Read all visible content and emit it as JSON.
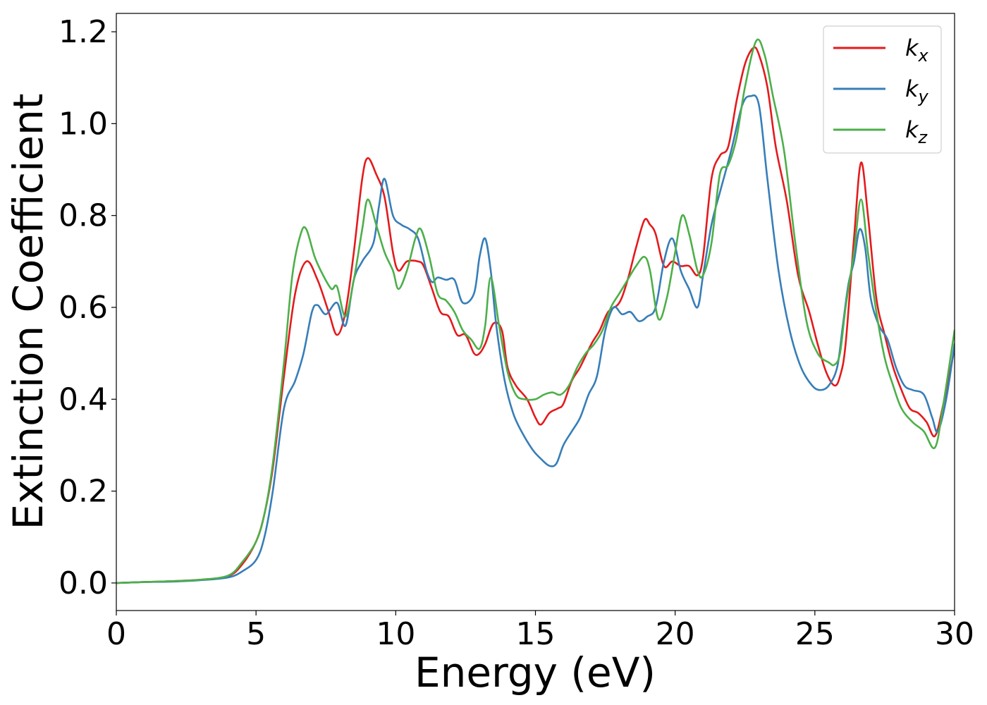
{
  "chart_data": {
    "type": "line",
    "title": "",
    "xlabel": "Energy (eV)",
    "ylabel": "Extinction Coefficient",
    "xlim": [
      0,
      30
    ],
    "ylim": [
      -0.06,
      1.24
    ],
    "xticks": [
      0,
      5,
      10,
      15,
      20,
      25,
      30
    ],
    "xtick_labels": [
      "0",
      "5",
      "10",
      "15",
      "20",
      "25",
      "30"
    ],
    "yticks": [
      0.0,
      0.2,
      0.4,
      0.6,
      0.8,
      1.0,
      1.2
    ],
    "ytick_labels": [
      "0.0",
      "0.2",
      "0.4",
      "0.6",
      "0.8",
      "1.0",
      "1.2"
    ],
    "grid": false,
    "legend_position": "upper right",
    "series": [
      {
        "name": "k_x",
        "label_base": "k",
        "label_sub": "x",
        "color": "#e41a1c",
        "x": [
          0,
          1,
          2,
          3,
          4,
          4.5,
          5,
          5.3,
          5.6,
          6.0,
          6.4,
          6.8,
          7.2,
          7.6,
          7.9,
          8.2,
          8.5,
          8.8,
          9.0,
          9.3,
          9.6,
          9.9,
          10.1,
          10.4,
          10.8,
          11.0,
          11.3,
          11.6,
          11.9,
          12.2,
          12.5,
          12.8,
          13.0,
          13.2,
          13.5,
          13.8,
          14.0,
          14.3,
          14.7,
          15.0,
          15.2,
          15.5,
          15.8,
          16.0,
          16.3,
          16.6,
          17.0,
          17.3,
          17.6,
          18.0,
          18.3,
          18.6,
          18.9,
          19.1,
          19.3,
          19.6,
          19.9,
          20.2,
          20.5,
          20.8,
          21.0,
          21.3,
          21.6,
          21.9,
          22.2,
          22.5,
          22.8,
          23.0,
          23.3,
          23.6,
          24.0,
          24.4,
          24.8,
          25.1,
          25.4,
          25.7,
          25.9,
          26.1,
          26.4,
          26.65,
          26.9,
          27.2,
          27.5,
          27.8,
          28.1,
          28.4,
          28.7,
          29.0,
          29.3,
          29.6,
          30.0
        ],
        "y": [
          0.0,
          0.002,
          0.004,
          0.007,
          0.015,
          0.04,
          0.09,
          0.15,
          0.25,
          0.45,
          0.63,
          0.7,
          0.66,
          0.59,
          0.54,
          0.59,
          0.72,
          0.88,
          0.925,
          0.89,
          0.84,
          0.72,
          0.68,
          0.7,
          0.7,
          0.69,
          0.64,
          0.59,
          0.58,
          0.54,
          0.54,
          0.5,
          0.5,
          0.52,
          0.565,
          0.55,
          0.47,
          0.43,
          0.4,
          0.36,
          0.345,
          0.37,
          0.38,
          0.39,
          0.44,
          0.47,
          0.52,
          0.55,
          0.59,
          0.61,
          0.66,
          0.73,
          0.79,
          0.78,
          0.76,
          0.69,
          0.7,
          0.69,
          0.69,
          0.67,
          0.71,
          0.88,
          0.93,
          0.95,
          1.05,
          1.13,
          1.165,
          1.15,
          1.08,
          0.95,
          0.83,
          0.67,
          0.59,
          0.52,
          0.46,
          0.43,
          0.45,
          0.52,
          0.75,
          0.915,
          0.8,
          0.62,
          0.54,
          0.47,
          0.42,
          0.38,
          0.37,
          0.35,
          0.32,
          0.39,
          0.51
        ]
      },
      {
        "name": "k_y",
        "label_base": "k",
        "label_sub": "y",
        "color": "#377eb8",
        "x": [
          0,
          1,
          2,
          3,
          4,
          4.5,
          5,
          5.3,
          5.6,
          6.0,
          6.4,
          6.7,
          7.0,
          7.2,
          7.5,
          7.9,
          8.2,
          8.5,
          8.8,
          9.2,
          9.4,
          9.6,
          9.9,
          10.2,
          10.5,
          10.8,
          11.1,
          11.3,
          11.5,
          11.8,
          12.1,
          12.4,
          12.8,
          13.0,
          13.2,
          13.4,
          13.6,
          13.9,
          14.2,
          14.5,
          14.9,
          15.2,
          15.5,
          15.75,
          16.0,
          16.3,
          16.6,
          16.9,
          17.2,
          17.5,
          17.8,
          18.1,
          18.4,
          18.7,
          19.0,
          19.3,
          19.6,
          19.9,
          20.2,
          20.5,
          20.8,
          21.0,
          21.3,
          21.6,
          22.0,
          22.4,
          22.7,
          23.0,
          23.3,
          23.7,
          24.1,
          24.5,
          24.9,
          25.2,
          25.5,
          25.8,
          26.0,
          26.2,
          26.4,
          26.6,
          26.8,
          27.0,
          27.3,
          27.6,
          27.9,
          28.2,
          28.5,
          28.9,
          29.2,
          29.4,
          29.7,
          30.0
        ],
        "y": [
          0.0,
          0.002,
          0.003,
          0.006,
          0.012,
          0.025,
          0.05,
          0.1,
          0.2,
          0.38,
          0.44,
          0.5,
          0.59,
          0.605,
          0.585,
          0.61,
          0.56,
          0.66,
          0.7,
          0.74,
          0.82,
          0.88,
          0.8,
          0.78,
          0.77,
          0.75,
          0.68,
          0.655,
          0.665,
          0.66,
          0.66,
          0.61,
          0.63,
          0.71,
          0.75,
          0.68,
          0.56,
          0.44,
          0.37,
          0.33,
          0.29,
          0.27,
          0.255,
          0.26,
          0.3,
          0.33,
          0.36,
          0.41,
          0.45,
          0.55,
          0.6,
          0.585,
          0.59,
          0.57,
          0.58,
          0.6,
          0.7,
          0.75,
          0.68,
          0.64,
          0.6,
          0.67,
          0.78,
          0.85,
          0.94,
          1.04,
          1.06,
          1.04,
          0.88,
          0.68,
          0.55,
          0.47,
          0.43,
          0.42,
          0.43,
          0.47,
          0.56,
          0.65,
          0.7,
          0.77,
          0.73,
          0.62,
          0.56,
          0.53,
          0.47,
          0.43,
          0.42,
          0.41,
          0.36,
          0.33,
          0.4,
          0.52
        ]
      },
      {
        "name": "k_z",
        "label_base": "k",
        "label_sub": "z",
        "color": "#4daf4a",
        "x": [
          0,
          1,
          2,
          3,
          4,
          4.5,
          5,
          5.3,
          5.6,
          6.0,
          6.3,
          6.6,
          6.8,
          7.1,
          7.4,
          7.7,
          7.9,
          8.2,
          8.5,
          8.8,
          9.0,
          9.3,
          9.6,
          9.9,
          10.1,
          10.4,
          10.7,
          10.9,
          11.2,
          11.5,
          11.8,
          12.1,
          12.4,
          12.7,
          13.0,
          13.2,
          13.4,
          13.7,
          14.0,
          14.3,
          14.6,
          15.0,
          15.3,
          15.6,
          15.9,
          16.2,
          16.5,
          16.8,
          17.1,
          17.4,
          17.7,
          18.0,
          18.3,
          18.6,
          18.9,
          19.1,
          19.4,
          19.7,
          20.0,
          20.25,
          20.5,
          20.8,
          21.0,
          21.3,
          21.6,
          21.9,
          22.2,
          22.5,
          22.9,
          23.2,
          23.5,
          23.9,
          24.3,
          24.7,
          25.1,
          25.5,
          25.7,
          25.9,
          26.1,
          26.4,
          26.65,
          26.9,
          27.2,
          27.5,
          27.8,
          28.1,
          28.5,
          28.9,
          29.3,
          29.6,
          30.0
        ],
        "y": [
          0.0,
          0.002,
          0.004,
          0.007,
          0.016,
          0.045,
          0.09,
          0.15,
          0.26,
          0.48,
          0.67,
          0.76,
          0.77,
          0.71,
          0.67,
          0.64,
          0.645,
          0.58,
          0.66,
          0.77,
          0.835,
          0.78,
          0.72,
          0.68,
          0.64,
          0.68,
          0.75,
          0.77,
          0.71,
          0.63,
          0.615,
          0.59,
          0.55,
          0.53,
          0.51,
          0.56,
          0.665,
          0.56,
          0.46,
          0.41,
          0.4,
          0.4,
          0.41,
          0.415,
          0.41,
          0.43,
          0.47,
          0.5,
          0.52,
          0.55,
          0.6,
          0.63,
          0.66,
          0.69,
          0.71,
          0.68,
          0.575,
          0.62,
          0.72,
          0.8,
          0.76,
          0.68,
          0.67,
          0.74,
          0.89,
          0.91,
          0.97,
          1.08,
          1.18,
          1.15,
          1.06,
          0.94,
          0.74,
          0.57,
          0.5,
          0.48,
          0.475,
          0.5,
          0.6,
          0.72,
          0.835,
          0.72,
          0.59,
          0.49,
          0.43,
          0.38,
          0.35,
          0.33,
          0.295,
          0.39,
          0.55
        ]
      }
    ]
  }
}
